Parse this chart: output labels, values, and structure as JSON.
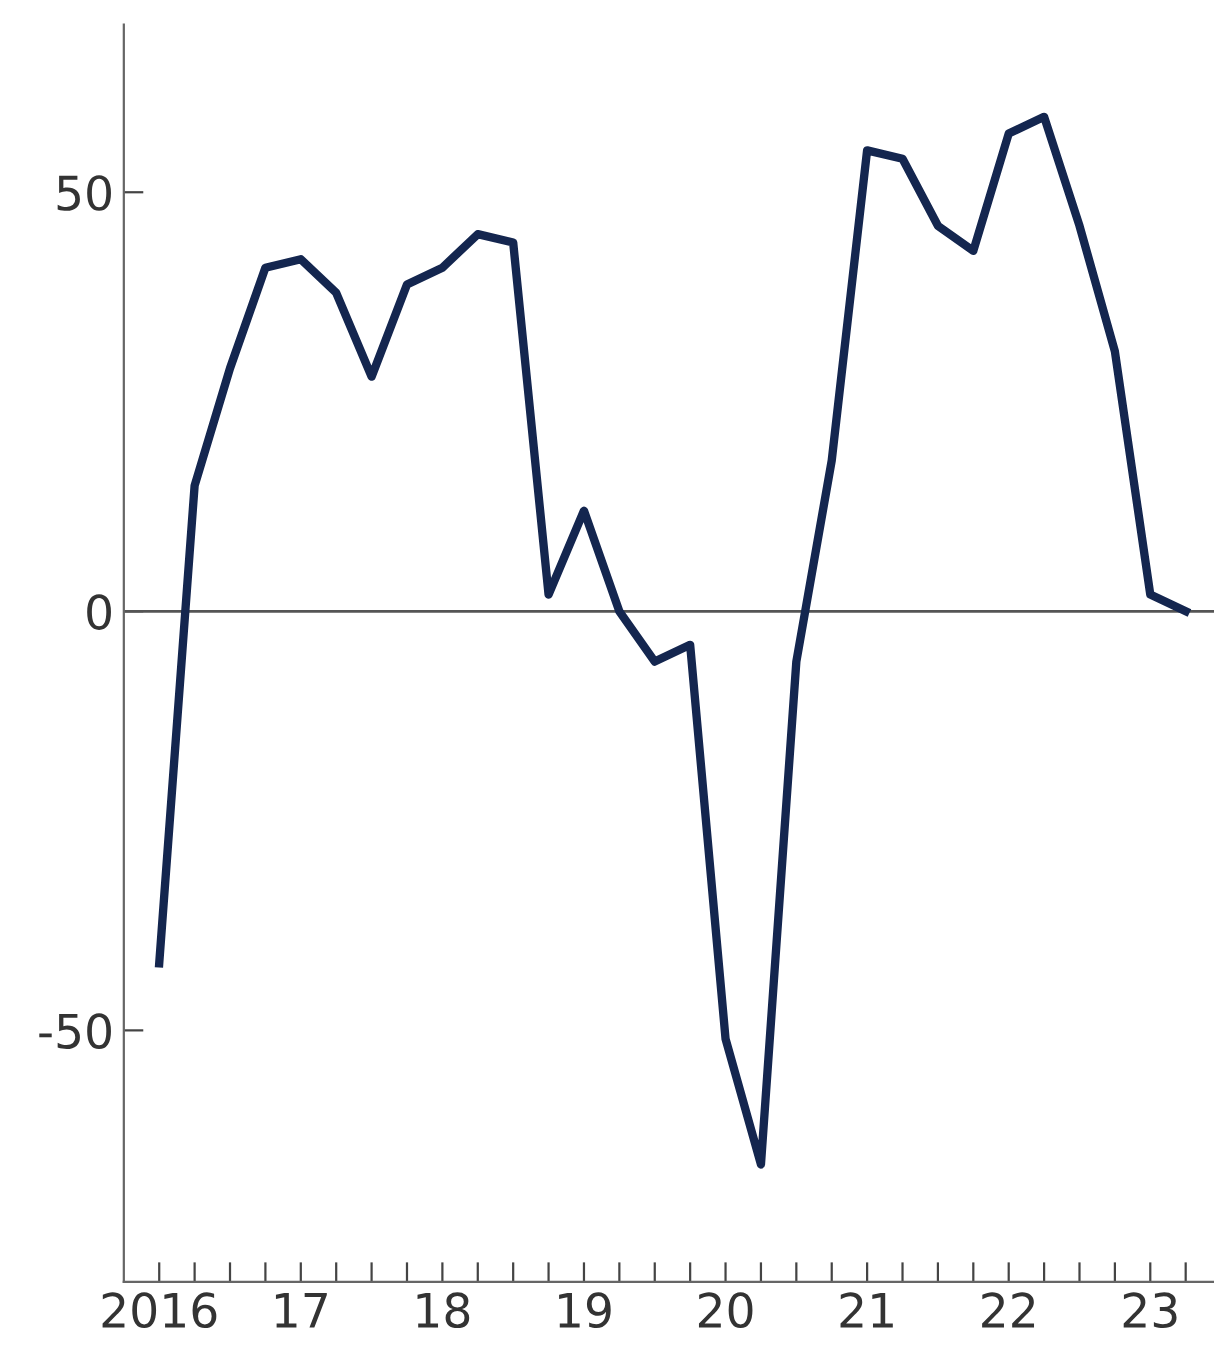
{
  "chart_data": {
    "type": "line",
    "x": [
      2016,
      2016.25,
      2016.5,
      2016.75,
      2017,
      2017.25,
      2017.5,
      2017.75,
      2018,
      2018.25,
      2018.5,
      2018.75,
      2019,
      2019.25,
      2019.5,
      2019.75,
      2020,
      2020.25,
      2020.5,
      2020.75,
      2021,
      2021.25,
      2021.5,
      2021.75,
      2022,
      2022.25,
      2022.5,
      2022.75,
      2023,
      2023.25
    ],
    "series": [
      {
        "color": "#14264f",
        "values": [
          -42,
          15,
          29,
          41,
          42,
          38,
          28,
          39,
          41,
          45,
          44,
          2,
          12,
          0,
          -6,
          -4,
          -51,
          -66,
          -6,
          18,
          55,
          54,
          46,
          43,
          57,
          59,
          46,
          31,
          2,
          0
        ]
      }
    ],
    "xlim": [
      2015.75,
      2023.45
    ],
    "xticks": [
      {
        "value": 2016,
        "label": "2016"
      },
      {
        "value": 2016.25,
        "label": null
      },
      {
        "value": 2016.5,
        "label": null
      },
      {
        "value": 2016.75,
        "label": null
      },
      {
        "value": 2017,
        "label": "17"
      },
      {
        "value": 2017.25,
        "label": null
      },
      {
        "value": 2017.5,
        "label": null
      },
      {
        "value": 2017.75,
        "label": null
      },
      {
        "value": 2018,
        "label": "18"
      },
      {
        "value": 2018.25,
        "label": null
      },
      {
        "value": 2018.5,
        "label": null
      },
      {
        "value": 2018.75,
        "label": null
      },
      {
        "value": 2019,
        "label": "19"
      },
      {
        "value": 2019.25,
        "label": null
      },
      {
        "value": 2019.5,
        "label": null
      },
      {
        "value": 2019.75,
        "label": null
      },
      {
        "value": 2020,
        "label": "20"
      },
      {
        "value": 2020.25,
        "label": null
      },
      {
        "value": 2020.5,
        "label": null
      },
      {
        "value": 2020.75,
        "label": null
      },
      {
        "value": 2021,
        "label": "21"
      },
      {
        "value": 2021.25,
        "label": null
      },
      {
        "value": 2021.5,
        "label": null
      },
      {
        "value": 2021.75,
        "label": null
      },
      {
        "value": 2022,
        "label": "22"
      },
      {
        "value": 2022.25,
        "label": null
      },
      {
        "value": 2022.5,
        "label": null
      },
      {
        "value": 2022.75,
        "label": null
      },
      {
        "value": 2023,
        "label": "23"
      },
      {
        "value": 2023.25,
        "label": null
      }
    ],
    "ylim": [
      -80,
      70
    ],
    "yticks": [
      -50,
      0,
      50
    ],
    "ref_lines": [
      {
        "axis": "y",
        "value": 0,
        "color": "#555555"
      }
    ],
    "grid": false,
    "marker": "none",
    "line_style": "solid"
  }
}
